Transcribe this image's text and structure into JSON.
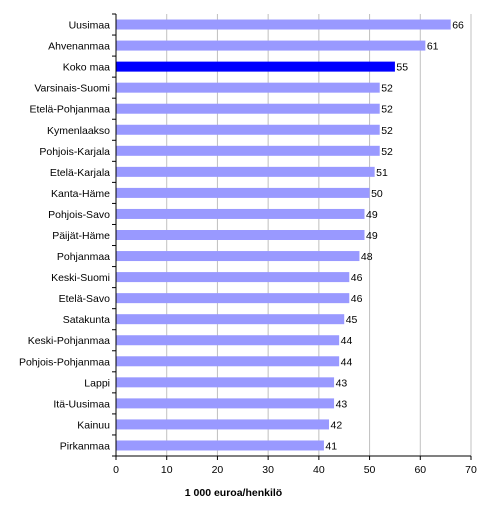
{
  "chart_data": {
    "type": "bar",
    "orientation": "horizontal",
    "categories": [
      "Uusimaa",
      "Ahvenanmaa",
      "Koko maa",
      "Varsinais-Suomi",
      "Etelä-Pohjanmaa",
      "Kymenlaakso",
      "Pohjois-Karjala",
      "Etelä-Karjala",
      "Kanta-Häme",
      "Pohjois-Savo",
      "Päijät-Häme",
      "Pohjanmaa",
      "Keski-Suomi",
      "Etelä-Savo",
      "Satakunta",
      "Keski-Pohjanmaa",
      "Pohjois-Pohjanmaa",
      "Lappi",
      "Itä-Uusimaa",
      "Kainuu",
      "Pirkanmaa"
    ],
    "values": [
      66,
      61,
      55,
      52,
      52,
      52,
      52,
      51,
      50,
      49,
      49,
      48,
      46,
      46,
      45,
      44,
      44,
      43,
      43,
      42,
      41
    ],
    "xlabel": "1 000 euroa/henkilö",
    "xlim": [
      0,
      70
    ],
    "xticks": [
      0,
      10,
      20,
      30,
      40,
      50,
      60,
      70
    ],
    "grid": true,
    "colors": {
      "bar": "#9999ff",
      "highlight": "#0000ff",
      "grid": "#c0c0c0",
      "axis": "#000000"
    },
    "highlight_category": "Koko maa"
  }
}
